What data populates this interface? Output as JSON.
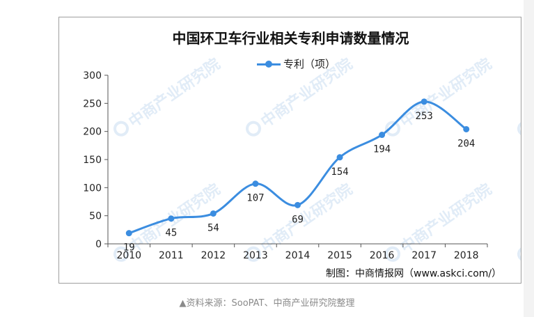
{
  "caption": "▲资料来源：SooPAT、中商产业研究院整理",
  "chart_data": {
    "type": "line",
    "title": "中国环卫车行业相关专利申请数量情况",
    "x": [
      "2010",
      "2011",
      "2012",
      "2013",
      "2014",
      "2015",
      "2016",
      "2017",
      "2018"
    ],
    "series": [
      {
        "name": "专利（项）",
        "values": [
          19,
          45,
          54,
          107,
          69,
          154,
          194,
          253,
          204
        ],
        "color": "#3b8de0",
        "smooth": true
      }
    ],
    "ylim": [
      0,
      300
    ],
    "yticks": [
      "0",
      "50",
      "100",
      "150",
      "200",
      "250",
      "300"
    ],
    "grid": false,
    "legend_position": "top-center",
    "data_labels": [
      "19",
      "45",
      "54",
      "107",
      "69",
      "154",
      "194",
      "253",
      "204"
    ],
    "source": "制图：中商情报网（www.askci.com/）"
  },
  "watermark": {
    "text": "中商产业研究院",
    "color": "#78aadc"
  }
}
